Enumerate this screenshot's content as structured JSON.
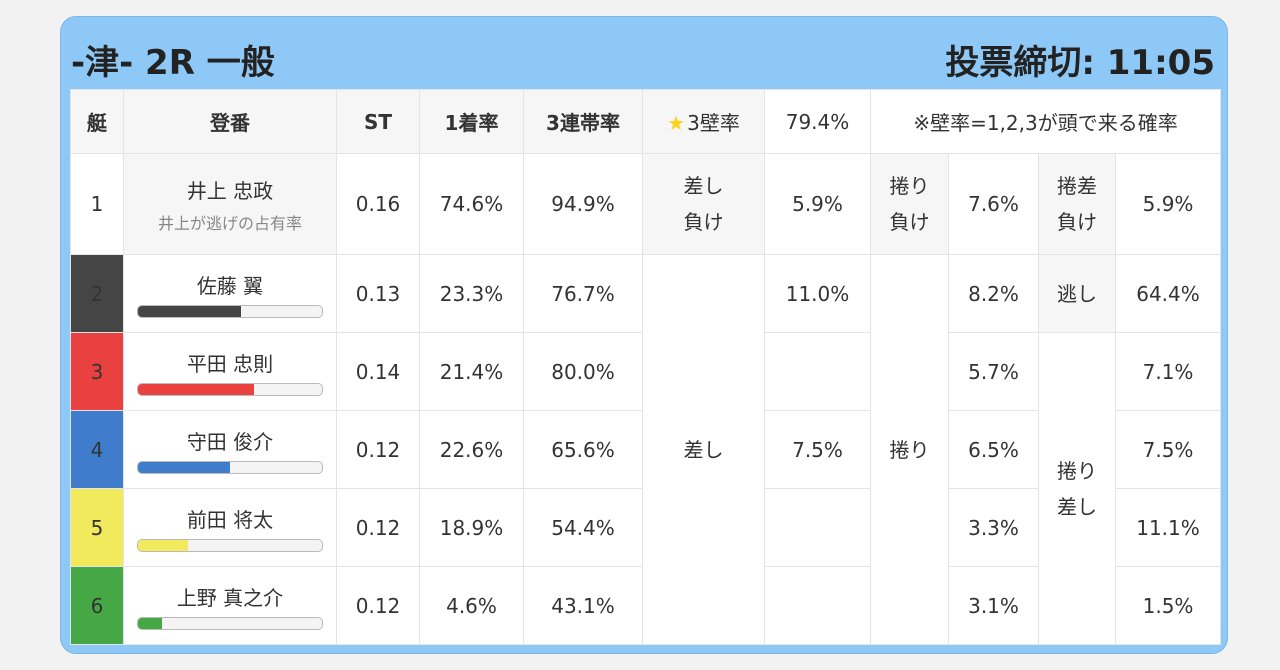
{
  "header": {
    "title": "-津- 2R 一般",
    "deadline": "投票締切: 11:05"
  },
  "columns": {
    "boat": "艇",
    "register": "登番",
    "st": "ST",
    "win_rate": "1着率",
    "top3_rate": "3連帯率",
    "wall_rate": "3壁率",
    "wall_value": "79.4%",
    "note": "※壁率=1,2,3が頭で来る確率"
  },
  "rows": [
    {
      "boat": "1",
      "name": "井上 忠政",
      "sub": "井上が逃げの占有率",
      "st": "0.16",
      "win": "74.6%",
      "top3": "94.9%",
      "lose1_val": "5.9%",
      "lose2_val": "7.6%",
      "lose3_val": "5.9%",
      "color": "#ffffff"
    },
    {
      "boat": "2",
      "name": "佐藤 翼",
      "bar": 0.56,
      "bar_color": "#454545",
      "st": "0.13",
      "win": "23.3%",
      "top3": "76.7%",
      "a_val": "11.0%",
      "b_val": "8.2%",
      "c_val": "64.4%"
    },
    {
      "boat": "3",
      "name": "平田 忠則",
      "bar": 0.63,
      "bar_color": "#e8413f",
      "st": "0.14",
      "win": "21.4%",
      "top3": "80.0%",
      "b_val": "5.7%",
      "c_val": "7.1%"
    },
    {
      "boat": "4",
      "name": "守田 俊介",
      "bar": 0.5,
      "bar_color": "#3f7ccc",
      "st": "0.12",
      "win": "22.6%",
      "top3": "65.6%",
      "a_val": "7.5%",
      "b_val": "6.5%",
      "c_val": "7.5%"
    },
    {
      "boat": "5",
      "name": "前田 将太",
      "bar": 0.27,
      "bar_color": "#f0ea5c",
      "st": "0.12",
      "win": "18.9%",
      "top3": "54.4%",
      "b_val": "3.3%",
      "c_val": "11.1%"
    },
    {
      "boat": "6",
      "name": "上野 真之介",
      "bar": 0.13,
      "bar_color": "#45a845",
      "st": "0.12",
      "win": "4.6%",
      "top3": "43.1%",
      "b_val": "3.1%",
      "c_val": "1.5%"
    }
  ],
  "labels": {
    "sashi_make": "差し負け",
    "sashi_make_l1": "差し",
    "sashi_make_l2": "負け",
    "makuri_make_l1": "捲り",
    "makuri_make_l2": "負け",
    "makurisashi_make_l1": "捲差",
    "makurisashi_make_l2": "負け",
    "nige": "逃し",
    "sashi": "差し",
    "makuri": "捲り",
    "makurisashi_l1": "捲り",
    "makurisashi_l2": "差し"
  }
}
